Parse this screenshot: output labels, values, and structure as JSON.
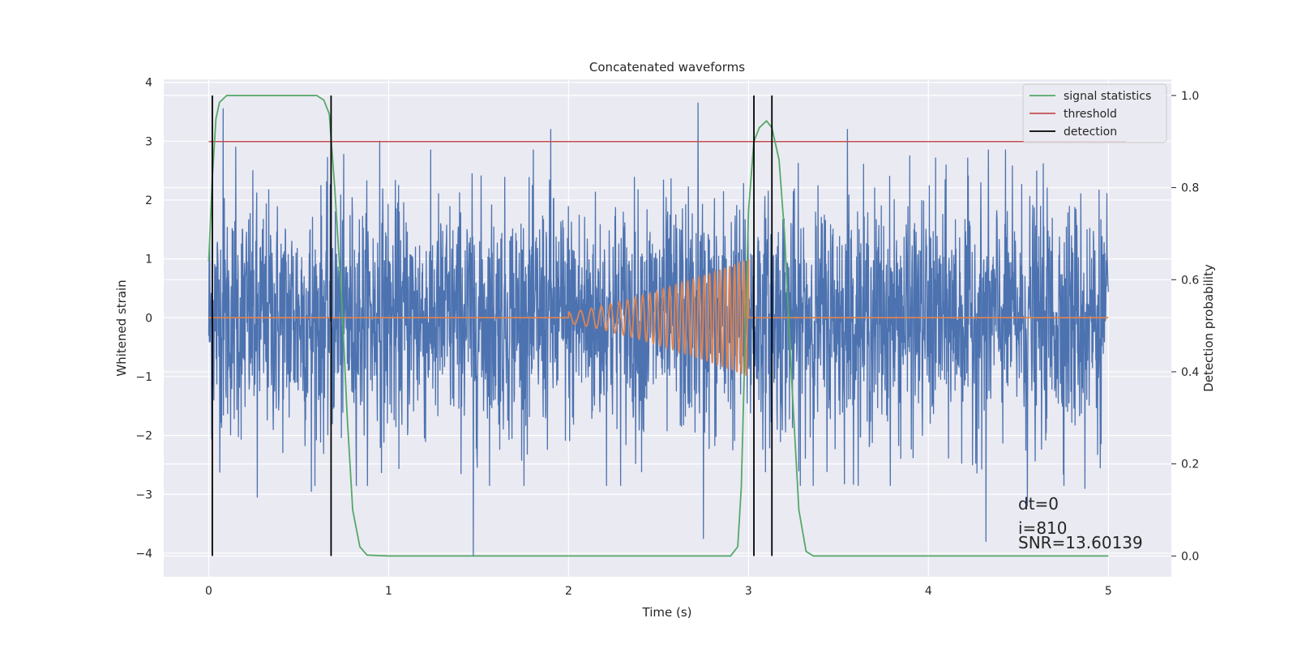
{
  "chart_data": {
    "type": "line",
    "title": "Concatenated waveforms",
    "xlabel": "Time (s)",
    "ylabel": "Whitened strain",
    "y2label": "Detection probability",
    "xlim": [
      -0.25,
      5.35
    ],
    "ylim": [
      -4.4,
      4.05
    ],
    "y2lim": [
      -0.045,
      1.035
    ],
    "xticks": [
      0,
      1,
      2,
      3,
      4,
      5
    ],
    "xtick_labels": [
      "0",
      "1",
      "2",
      "3",
      "4",
      "5"
    ],
    "yticks": [
      -4,
      -3,
      -2,
      -1,
      0,
      1,
      2,
      3,
      4
    ],
    "ytick_labels": [
      "−4",
      "−3",
      "−2",
      "−1",
      "0",
      "1",
      "2",
      "3",
      "4"
    ],
    "y2ticks": [
      0.0,
      0.2,
      0.4,
      0.6,
      0.8,
      1.0
    ],
    "y2tick_labels": [
      "0.0",
      "0.2",
      "0.4",
      "0.6",
      "0.8",
      "1.0"
    ],
    "grid": true,
    "legend_position": "top-right",
    "legend": [
      {
        "label": "signal statistics",
        "color": "#55a868"
      },
      {
        "label": "threshold",
        "color": "#c44e52"
      },
      {
        "label": "detection",
        "color": "#000000"
      }
    ],
    "noise_series": {
      "name": "whitened strain",
      "color": "#4c72b0",
      "x_range": [
        0,
        5
      ],
      "typical_amplitude": 1.0,
      "peaks": [
        {
          "x": 0.08,
          "y": 3.55
        },
        {
          "x": 0.15,
          "y": 2.9
        },
        {
          "x": 0.27,
          "y": -3.05
        },
        {
          "x": 0.57,
          "y": -2.95
        },
        {
          "x": 0.95,
          "y": 3.0
        },
        {
          "x": 1.47,
          "y": -4.05
        },
        {
          "x": 1.9,
          "y": 3.2
        },
        {
          "x": 2.72,
          "y": 3.65
        },
        {
          "x": 2.75,
          "y": -3.75
        },
        {
          "x": 3.28,
          "y": -2.6
        },
        {
          "x": 3.55,
          "y": 3.2
        },
        {
          "x": 4.32,
          "y": -3.8
        },
        {
          "x": 4.55,
          "y": -3.2
        },
        {
          "x": 4.87,
          "y": -2.9
        }
      ]
    },
    "injected_waveform": {
      "name": "chirp",
      "color": "#dd8452",
      "baseline": 0,
      "start": 2.0,
      "end": 3.0,
      "amp_start": 0.1,
      "amp_end": 1.0,
      "freq_start": 14,
      "freq_end": 40
    },
    "signal_statistics": {
      "color": "#55a868",
      "axis": "right",
      "points": [
        [
          0.0,
          0.64
        ],
        [
          0.02,
          0.82
        ],
        [
          0.04,
          0.95
        ],
        [
          0.06,
          0.985
        ],
        [
          0.1,
          1.0
        ],
        [
          0.6,
          1.0
        ],
        [
          0.64,
          0.99
        ],
        [
          0.67,
          0.96
        ],
        [
          0.7,
          0.8
        ],
        [
          0.74,
          0.55
        ],
        [
          0.77,
          0.3
        ],
        [
          0.8,
          0.1
        ],
        [
          0.84,
          0.02
        ],
        [
          0.88,
          0.002
        ],
        [
          1.0,
          0.0
        ],
        [
          2.9,
          0.0
        ],
        [
          2.94,
          0.02
        ],
        [
          2.96,
          0.15
        ],
        [
          2.98,
          0.45
        ],
        [
          3.0,
          0.75
        ],
        [
          3.03,
          0.9
        ],
        [
          3.06,
          0.93
        ],
        [
          3.1,
          0.945
        ],
        [
          3.13,
          0.93
        ],
        [
          3.17,
          0.86
        ],
        [
          3.2,
          0.7
        ],
        [
          3.24,
          0.38
        ],
        [
          3.28,
          0.1
        ],
        [
          3.32,
          0.01
        ],
        [
          3.36,
          0.0
        ],
        [
          5.0,
          0.0
        ]
      ]
    },
    "threshold": {
      "value": 0.9,
      "x_range": [
        0,
        5.1
      ],
      "color": "#c44e52",
      "axis": "right"
    },
    "detections": [
      0.02,
      0.68,
      3.03,
      3.13
    ],
    "detection_range": [
      0.0,
      1.0
    ],
    "annotations": [
      "dt=0",
      "i=810",
      "SNR=13.60139"
    ]
  }
}
